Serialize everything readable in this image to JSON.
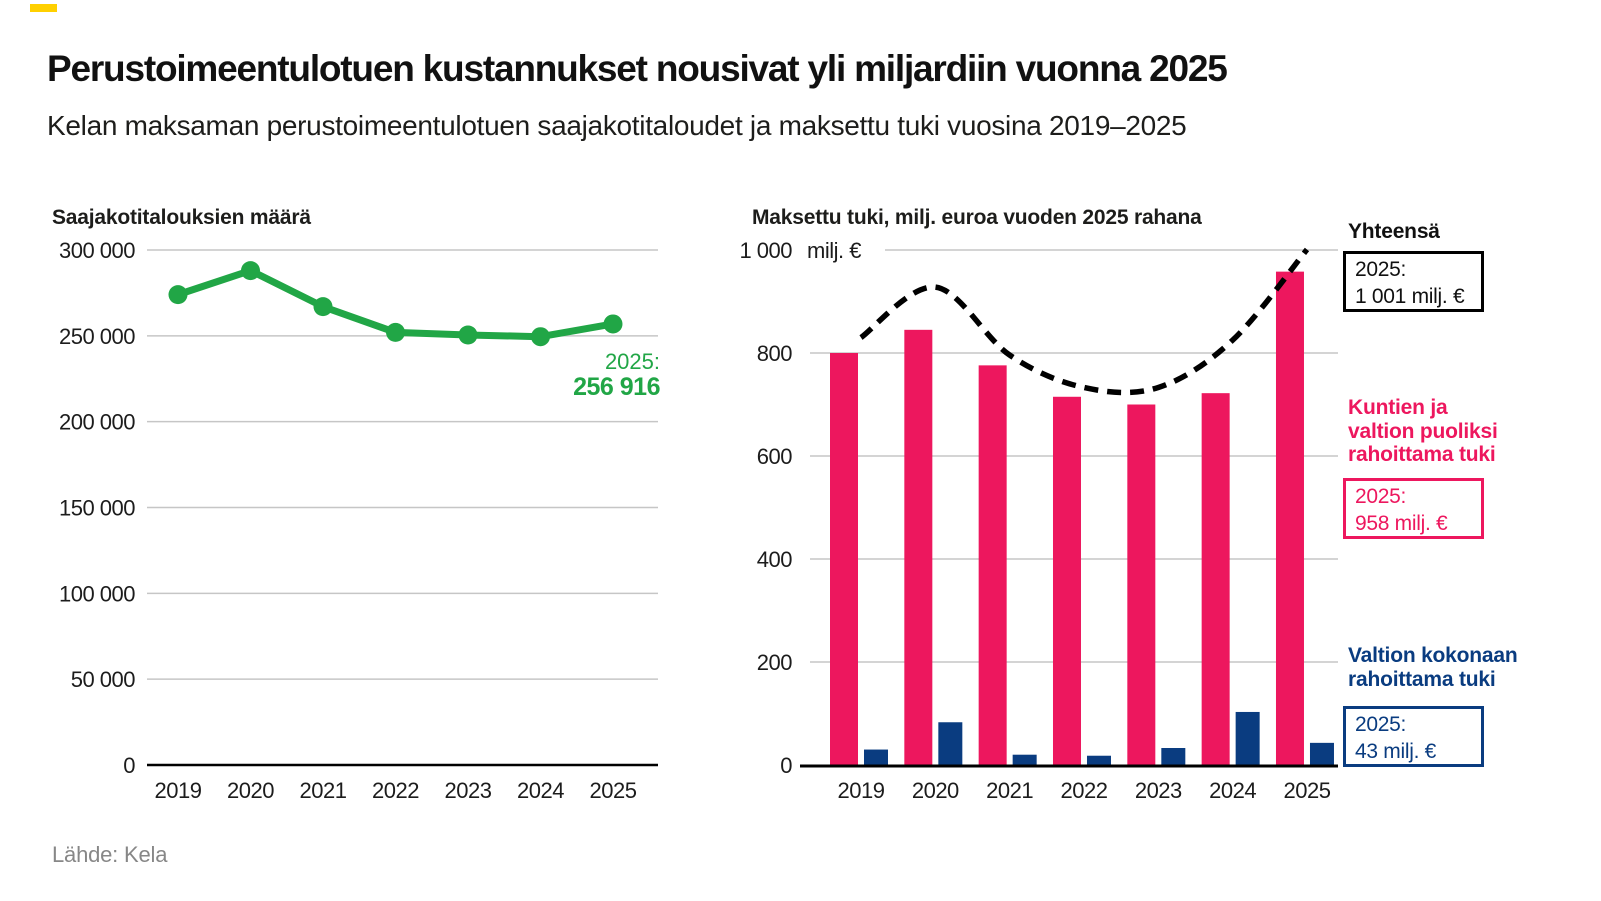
{
  "header": {
    "title": "Perustoimeentulotuen kustannukset nousivat yli miljardiin vuonna 2025",
    "subtitle": "Kelan maksaman perustoimeentulotuen saajakotitaloudet ja maksettu tuki vuosina 2019–2025"
  },
  "source": "Lähde: Kela",
  "colors": {
    "green": "#21a646",
    "pink": "#ed175e",
    "blue": "#0a3c80",
    "grid": "#c6c6c6",
    "axis": "#000000",
    "accent_yellow": "#ffd000",
    "text": "#1d1d1b",
    "muted_text": "#878787"
  },
  "chart_data": [
    {
      "type": "line",
      "title": "Saajakotitalouksien määrä",
      "categories": [
        "2019",
        "2020",
        "2021",
        "2022",
        "2023",
        "2024",
        "2025"
      ],
      "values": [
        274000,
        288000,
        267000,
        252000,
        250500,
        249500,
        256916
      ],
      "ylim": [
        0,
        300000
      ],
      "yticks": [
        0,
        50000,
        100000,
        150000,
        200000,
        250000,
        300000
      ],
      "ytick_labels": [
        "0",
        "50 000",
        "100 000",
        "150 000",
        "200 000",
        "250 000",
        "300 000"
      ],
      "grid": true,
      "legend_position": "none",
      "series_color_key": "green",
      "annotation": {
        "label": "2025:",
        "value": "256 916"
      }
    },
    {
      "type": "bar",
      "title": "Maksettu tuki, milj. euroa vuoden 2025 rahana",
      "unit_label": "milj. €",
      "categories": [
        "2019",
        "2020",
        "2021",
        "2022",
        "2023",
        "2024",
        "2025"
      ],
      "series": [
        {
          "name": "Kuntien ja valtion puoliksi rahoittama tuki",
          "type": "bar",
          "color_key": "pink",
          "values": [
            800,
            845,
            776,
            715,
            700,
            722,
            958
          ]
        },
        {
          "name": "Valtion kokonaan rahoittama tuki",
          "type": "bar",
          "color_key": "blue",
          "values": [
            30,
            83,
            20,
            18,
            33,
            103,
            43
          ]
        },
        {
          "name": "Yhteensä",
          "type": "dashed_line",
          "color_key": "axis",
          "values": [
            830,
            928,
            796,
            733,
            733,
            825,
            1001
          ]
        }
      ],
      "ylim": [
        0,
        1000
      ],
      "yticks": [
        0,
        200,
        400,
        600,
        800,
        1000
      ],
      "ytick_labels": [
        "0",
        "200",
        "400",
        "600",
        "800",
        "1 000"
      ],
      "grid": true,
      "legend_position": "right",
      "legend": [
        {
          "label_lines": [
            "Yhteensä"
          ],
          "color_key": "axis",
          "callout": [
            "2025:",
            "1 001 milj. €"
          ]
        },
        {
          "label_lines": [
            "Kuntien ja",
            "valtion puoliksi",
            "rahoittama tuki"
          ],
          "color_key": "pink",
          "callout": [
            "2025:",
            "958 milj. €"
          ]
        },
        {
          "label_lines": [
            "Valtion kokonaan",
            "rahoittama tuki"
          ],
          "color_key": "blue",
          "callout": [
            "2025:",
            "43 milj. €"
          ]
        }
      ]
    }
  ]
}
